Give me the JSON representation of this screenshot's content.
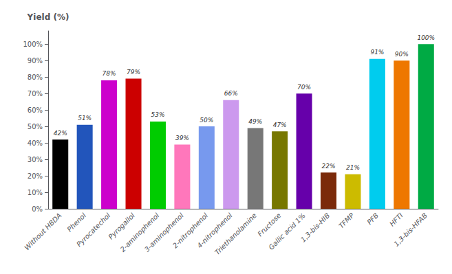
{
  "chart_data": {
    "type": "bar",
    "categories": [
      "Without HBDA",
      "Phenol",
      "Pyrocatechol",
      "Pyrogallol",
      "2-aminophenol",
      "3-aminophenol",
      "2-nitrophenol",
      "4-nitrophenol",
      "Triethanolamine",
      "Fructose",
      "Gallic acid 1%",
      "1,3-bis-HIB",
      "TFMP",
      "PFB",
      "HFTI",
      "1,3-bis-HFAB"
    ],
    "values": [
      42,
      51,
      78,
      79,
      53,
      39,
      50,
      66,
      49,
      47,
      70,
      22,
      21,
      91,
      90,
      100
    ],
    "value_labels": [
      "42%",
      "51%",
      "78%",
      "79%",
      "53%",
      "39%",
      "50%",
      "66%",
      "49%",
      "47%",
      "70%",
      "22%",
      "21%",
      "91%",
      "90%",
      "100%"
    ],
    "colors": [
      "#000000",
      "#2255BB",
      "#CC00CC",
      "#CC0000",
      "#00CC00",
      "#FF77BB",
      "#7799EE",
      "#CC99EE",
      "#777777",
      "#777700",
      "#6600AA",
      "#7B2A0A",
      "#CCBB00",
      "#00CCEE",
      "#EE7700",
      "#00AA44"
    ],
    "ylabel": "Yield (%)",
    "ylim": [
      0,
      108
    ],
    "yticks": [
      {
        "value": 0,
        "label": "0%"
      },
      {
        "value": 10,
        "label": "10%"
      },
      {
        "value": 20,
        "label": "20%"
      },
      {
        "value": 30,
        "label": "30%"
      },
      {
        "value": 40,
        "label": "40%"
      },
      {
        "value": 50,
        "label": "50%"
      },
      {
        "value": 60,
        "label": "60%"
      },
      {
        "value": 70,
        "label": "70%"
      },
      {
        "value": 80,
        "label": "80%"
      },
      {
        "value": 90,
        "label": "90%"
      },
      {
        "value": 100,
        "label": "100%"
      }
    ],
    "data_labels": true,
    "grid": false
  }
}
